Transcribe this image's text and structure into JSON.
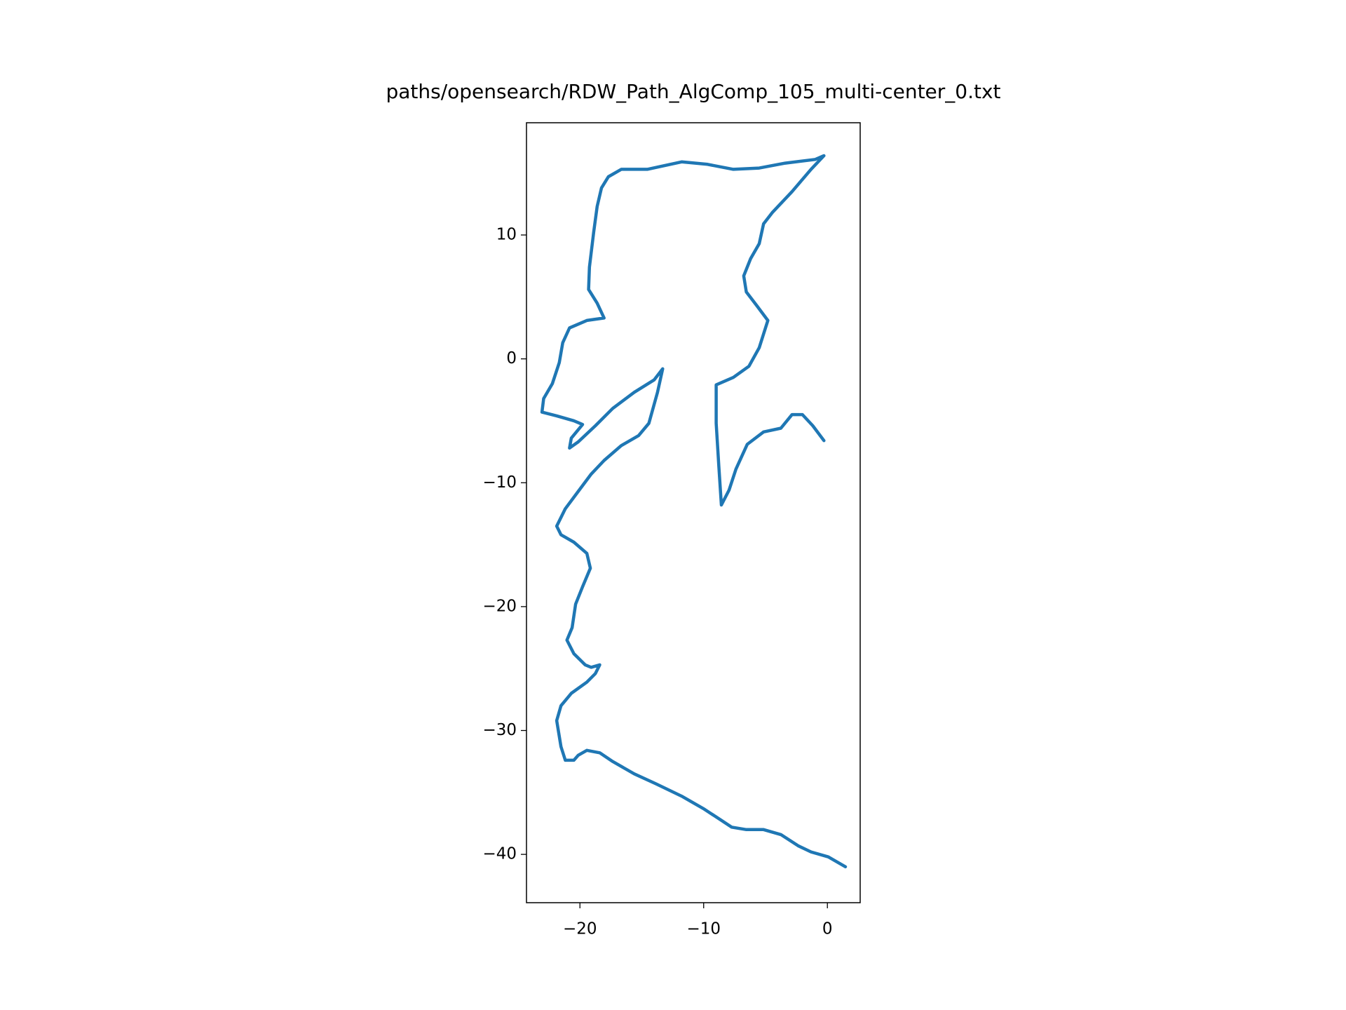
{
  "chart_data": {
    "type": "line",
    "title": "paths/opensearch/RDW_Path_AlgComp_105_multi-center_0.txt",
    "color": "#1f77b4",
    "x": [
      1.46,
      0.07,
      -1.32,
      -2.37,
      -3.76,
      -5.16,
      -6.55,
      -7.74,
      -8.64,
      -10.03,
      -11.78,
      -13.87,
      -15.61,
      -17.35,
      -18.4,
      -19.44,
      -20.14,
      -20.49,
      -21.18,
      -21.53,
      -21.88,
      -21.53,
      -20.7,
      -19.44,
      -18.75,
      -18.4,
      -19.09,
      -19.58,
      -20.49,
      -21.05,
      -20.63,
      -20.35,
      -19.79,
      -19.16,
      -19.44,
      -20.49,
      -21.53,
      -21.88,
      -21.18,
      -20.14,
      -19.09,
      -18.05,
      -16.66,
      -15.26,
      -14.43,
      -13.73,
      -13.31,
      -14.01,
      -15.61,
      -17.35,
      -18.75,
      -20.14,
      -20.84,
      -20.7,
      -19.79,
      -20.49,
      -21.88,
      -23.07,
      -22.93,
      -22.23,
      -21.67,
      -21.39,
      -20.84,
      -19.44,
      -18.05,
      -18.61,
      -19.3,
      -19.23,
      -18.89,
      -18.61,
      -18.26,
      -17.7,
      -16.66,
      -14.56,
      -11.78,
      -9.69,
      -7.6,
      -5.51,
      -3.41,
      -0.98,
      -0.28,
      -1.32,
      -2.86,
      -4.46,
      -5.16,
      -5.51,
      -6.2,
      -6.76,
      -6.55,
      -5.71,
      -4.81,
      -5.51,
      -6.34,
      -7.6,
      -8.99,
      -8.99,
      -8.78,
      -8.57,
      -7.95,
      -7.39,
      -6.48,
      -5.16,
      -3.76,
      -2.86,
      -2.02,
      -1.18,
      -0.28
    ],
    "values": [
      -41.0,
      -40.2,
      -39.8,
      -39.3,
      -38.4,
      -38.0,
      -38.0,
      -37.8,
      -37.2,
      -36.3,
      -35.3,
      -34.3,
      -33.5,
      -32.5,
      -31.8,
      -31.6,
      -32.0,
      -32.4,
      -32.4,
      -31.3,
      -29.2,
      -28.0,
      -27.0,
      -26.1,
      -25.4,
      -24.7,
      -24.9,
      -24.7,
      -23.8,
      -22.7,
      -21.7,
      -19.8,
      -18.4,
      -16.9,
      -15.7,
      -14.8,
      -14.2,
      -13.5,
      -12.1,
      -10.7,
      -9.3,
      -8.2,
      -7.0,
      -6.2,
      -5.2,
      -2.7,
      -0.8,
      -1.7,
      -2.7,
      -4.0,
      -5.4,
      -6.7,
      -7.2,
      -6.4,
      -5.3,
      -5.0,
      -4.6,
      -4.3,
      -3.2,
      -2.0,
      -0.3,
      1.3,
      2.5,
      3.1,
      3.3,
      4.5,
      5.6,
      7.4,
      10.2,
      12.3,
      13.8,
      14.7,
      15.3,
      15.3,
      15.9,
      15.7,
      15.3,
      15.4,
      15.8,
      16.1,
      16.4,
      15.3,
      13.5,
      11.8,
      10.9,
      9.3,
      8.1,
      6.7,
      5.4,
      4.3,
      3.1,
      0.9,
      -0.6,
      -1.5,
      -2.1,
      -5.2,
      -8.6,
      -11.8,
      -10.6,
      -8.9,
      -6.9,
      -5.9,
      -5.6,
      -4.5,
      -4.5,
      -5.4,
      -6.6
    ],
    "xlim": [
      -24.32,
      2.65
    ],
    "ylim": [
      -43.9,
      19.06
    ],
    "xticks": [
      {
        "value": -20,
        "label": "−20"
      },
      {
        "value": -10,
        "label": "−10"
      },
      0
    ],
    "yticks": [
      {
        "value": -40,
        "label": "−40"
      },
      {
        "value": -30,
        "label": "−30"
      },
      {
        "value": -20,
        "label": "−20"
      },
      {
        "value": -10,
        "label": "−10"
      },
      0,
      10
    ]
  }
}
